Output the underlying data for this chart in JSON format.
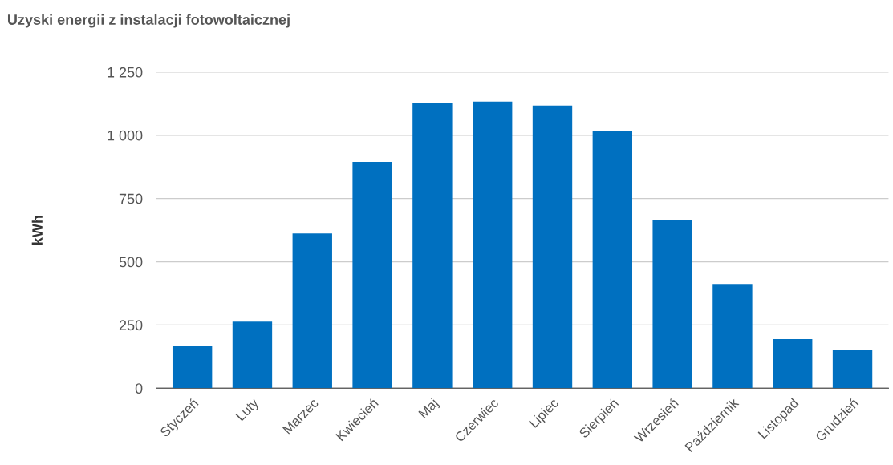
{
  "chart_data": {
    "type": "bar",
    "title": "Uzyski energii z instalacji fotowoltaicznej",
    "ylabel": "kWh",
    "categories": [
      "Styczeń",
      "Luty",
      "Marzec",
      "Kwiecień",
      "Maj",
      "Czerwiec",
      "Lipiec",
      "Sierpień",
      "Wrzesień",
      "Październik",
      "Listopad",
      "Grudzień"
    ],
    "values": [
      168,
      263,
      612,
      895,
      1126,
      1133,
      1117,
      1015,
      666,
      412,
      194,
      152
    ],
    "color": "#0070c0",
    "ylim": [
      0,
      1250
    ],
    "yticks": [
      0,
      250,
      500,
      750,
      {
        "value": 1000,
        "label": "1 000"
      },
      {
        "value": 1250,
        "label": "1 250"
      }
    ],
    "grid": "y"
  }
}
